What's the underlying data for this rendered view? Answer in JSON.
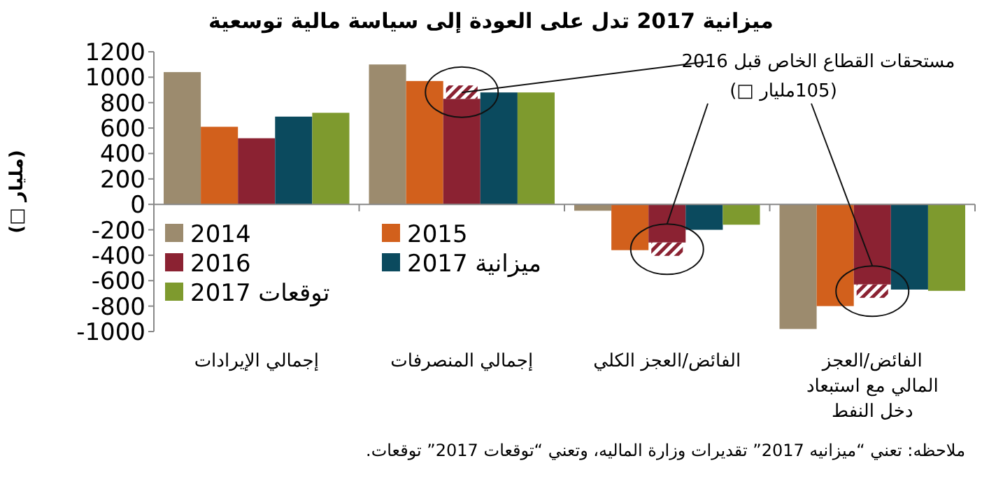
{
  "chart_data": {
    "type": "bar",
    "title": "ميزانية 2017 تدل على العودة إلى سياسة مالية توسعية",
    "ylabel": "(مليار □)",
    "categories": [
      "إجمالي الإيرادات",
      "إجمالي المنصرفات",
      "الفائض/العجز الكلي",
      "الفائض/العجز المالي مع استبعاد دخل النفط"
    ],
    "series": [
      {
        "name": "2014",
        "color": "#9c8b6e",
        "values": [
          1040,
          1100,
          -50,
          -980
        ]
      },
      {
        "name": "2015",
        "color": "#d2601c",
        "values": [
          610,
          970,
          -360,
          -800
        ]
      },
      {
        "name": "2016",
        "color": "#8b2232",
        "values": [
          520,
          830,
          -300,
          -630
        ]
      },
      {
        "color": "#8b2232",
        "values": [
          null,
          105,
          -105,
          -105
        ],
        "base": [
          null,
          830,
          -300,
          -630
        ]
      },
      {
        "name": "ميزانية 2017",
        "color": "#0b4a5e",
        "values": [
          690,
          880,
          -200,
          -670
        ]
      },
      {
        "name": "توقعات 2017",
        "color": "#7e9a2e",
        "values": [
          720,
          880,
          -160,
          -680
        ]
      }
    ],
    "ylim": [
      -1000,
      1200
    ],
    "yticks": [
      -1000,
      -800,
      -600,
      -400,
      -200,
      0,
      200,
      400,
      600,
      800,
      1000,
      1200
    ],
    "legend": "bottom left",
    "annotations": [
      {
        "text": "مستحقات القطاع الخاص قبل 2016",
        "x": "إجمالي المنصرفات",
        "y": 880
      },
      "(105مليار □)",
      "ملاحظه: تعني “ميزانيه 2017” تقديرات وزارة الماليه، وتعني “توقعات 2017” توقعات."
    ]
  }
}
